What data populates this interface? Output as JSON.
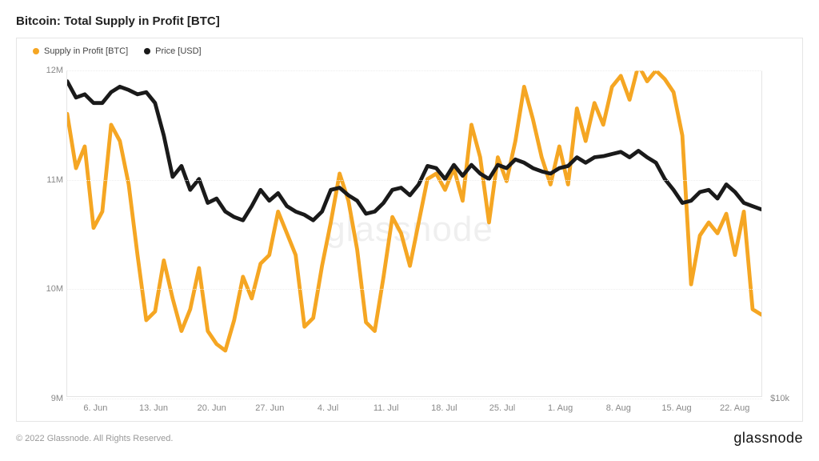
{
  "title": "Bitcoin: Total Supply in Profit [BTC]",
  "watermark": "glassnode",
  "footer_copyright": "© 2022 Glassnode. All Rights Reserved.",
  "footer_brand": "glassnode",
  "legend": {
    "series1": {
      "label": "Supply in Profit [BTC]",
      "color": "#f5a623"
    },
    "series2": {
      "label": "Price [USD]",
      "color": "#1a1a1a"
    }
  },
  "chart": {
    "type": "line",
    "background_color": "#ffffff",
    "border_color": "#e5e5e5",
    "grid_color": "#eeeeee",
    "axis_label_color": "#888888",
    "axis_label_fontsize": 11,
    "line_width": 1.6,
    "y_left": {
      "min": 9000000,
      "max": 12000000,
      "ticks": [
        {
          "value": 9000000,
          "label": "9M"
        },
        {
          "value": 10000000,
          "label": "10M"
        },
        {
          "value": 11000000,
          "label": "11M"
        },
        {
          "value": 12000000,
          "label": "12M"
        }
      ]
    },
    "y_right": {
      "ticks": [
        {
          "value": 9000000,
          "label": "$10k"
        }
      ]
    },
    "x": {
      "ticks": [
        "6. Jun",
        "13. Jun",
        "20. Jun",
        "27. Jun",
        "4. Jul",
        "11. Jul",
        "18. Jul",
        "25. Jul",
        "1. Aug",
        "8. Aug",
        "15. Aug",
        "22. Aug"
      ]
    },
    "series_supply": {
      "color": "#f5a623",
      "values": [
        11600000,
        11100000,
        11300000,
        10550000,
        10700000,
        11500000,
        11350000,
        10950000,
        10300000,
        9700000,
        9780000,
        10250000,
        9900000,
        9600000,
        9800000,
        10180000,
        9600000,
        9480000,
        9420000,
        9700000,
        10100000,
        9900000,
        10220000,
        10300000,
        10700000,
        10500000,
        10300000,
        9640000,
        9720000,
        10200000,
        10600000,
        11050000,
        10800000,
        10350000,
        9680000,
        9600000,
        10100000,
        10650000,
        10500000,
        10200000,
        10600000,
        11000000,
        11050000,
        10900000,
        11100000,
        10800000,
        11500000,
        11200000,
        10600000,
        11200000,
        10980000,
        11350000,
        11850000,
        11550000,
        11200000,
        10950000,
        11300000,
        10950000,
        11650000,
        11350000,
        11700000,
        11500000,
        11850000,
        11950000,
        11730000,
        12050000,
        11900000,
        12000000,
        11920000,
        11800000,
        11400000,
        10030000,
        10480000,
        10600000,
        10500000,
        10680000,
        10300000,
        10700000,
        9800000,
        9750000
      ]
    },
    "series_price": {
      "color": "#1a1a1a",
      "values": [
        11900000,
        11750000,
        11780000,
        11700000,
        11700000,
        11800000,
        11850000,
        11820000,
        11780000,
        11800000,
        11700000,
        11400000,
        11020000,
        11120000,
        10900000,
        11000000,
        10780000,
        10820000,
        10700000,
        10650000,
        10620000,
        10750000,
        10900000,
        10800000,
        10870000,
        10750000,
        10700000,
        10670000,
        10620000,
        10700000,
        10900000,
        10920000,
        10850000,
        10800000,
        10680000,
        10700000,
        10780000,
        10900000,
        10920000,
        10850000,
        10950000,
        11120000,
        11100000,
        11000000,
        11130000,
        11030000,
        11130000,
        11050000,
        11000000,
        11130000,
        11100000,
        11180000,
        11150000,
        11100000,
        11070000,
        11050000,
        11100000,
        11120000,
        11200000,
        11150000,
        11200000,
        11210000,
        11230000,
        11250000,
        11200000,
        11260000,
        11200000,
        11150000,
        11000000,
        10900000,
        10780000,
        10800000,
        10880000,
        10900000,
        10820000,
        10950000,
        10880000,
        10780000,
        10750000,
        10720000
      ]
    }
  }
}
